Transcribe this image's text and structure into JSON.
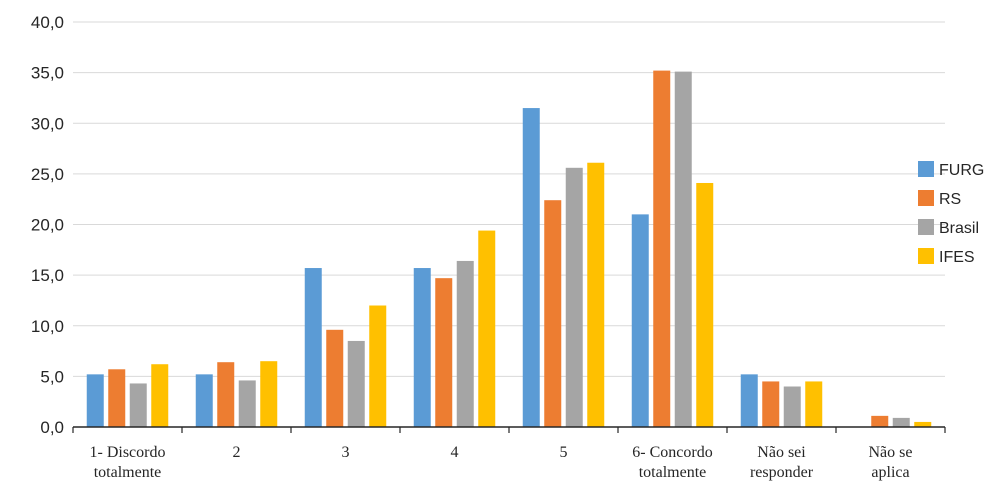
{
  "chart_data": {
    "type": "bar",
    "title": "",
    "xlabel": "",
    "ylabel": "",
    "ylim": [
      0,
      40
    ],
    "ytick_step": 5,
    "ytick_labels": [
      "0,0",
      "5,0",
      "10,0",
      "15,0",
      "20,0",
      "25,0",
      "30,0",
      "35,0",
      "40,0"
    ],
    "grid": true,
    "legend_position": "right",
    "categories": [
      [
        "1- Discordo",
        "totalmente"
      ],
      [
        "2"
      ],
      [
        "3"
      ],
      [
        "4"
      ],
      [
        "5"
      ],
      [
        "6- Concordo",
        "totalmente"
      ],
      [
        "Não sei",
        "responder"
      ],
      [
        "Não se",
        "aplica"
      ]
    ],
    "series": [
      {
        "name": "FURG",
        "color": "#5B9BD5",
        "values": [
          5.2,
          5.2,
          15.7,
          15.7,
          31.5,
          21.0,
          5.2,
          0
        ]
      },
      {
        "name": "RS",
        "color": "#ED7D31",
        "values": [
          5.7,
          6.4,
          9.6,
          14.7,
          22.4,
          35.2,
          4.5,
          1.1
        ]
      },
      {
        "name": "Brasil",
        "color": "#A5A5A5",
        "values": [
          4.3,
          4.6,
          8.5,
          16.4,
          25.6,
          35.1,
          4.0,
          0.9
        ]
      },
      {
        "name": "IFES",
        "color": "#FFC000",
        "values": [
          6.2,
          6.5,
          12.0,
          19.4,
          26.1,
          24.1,
          4.5,
          0.5
        ]
      }
    ]
  }
}
